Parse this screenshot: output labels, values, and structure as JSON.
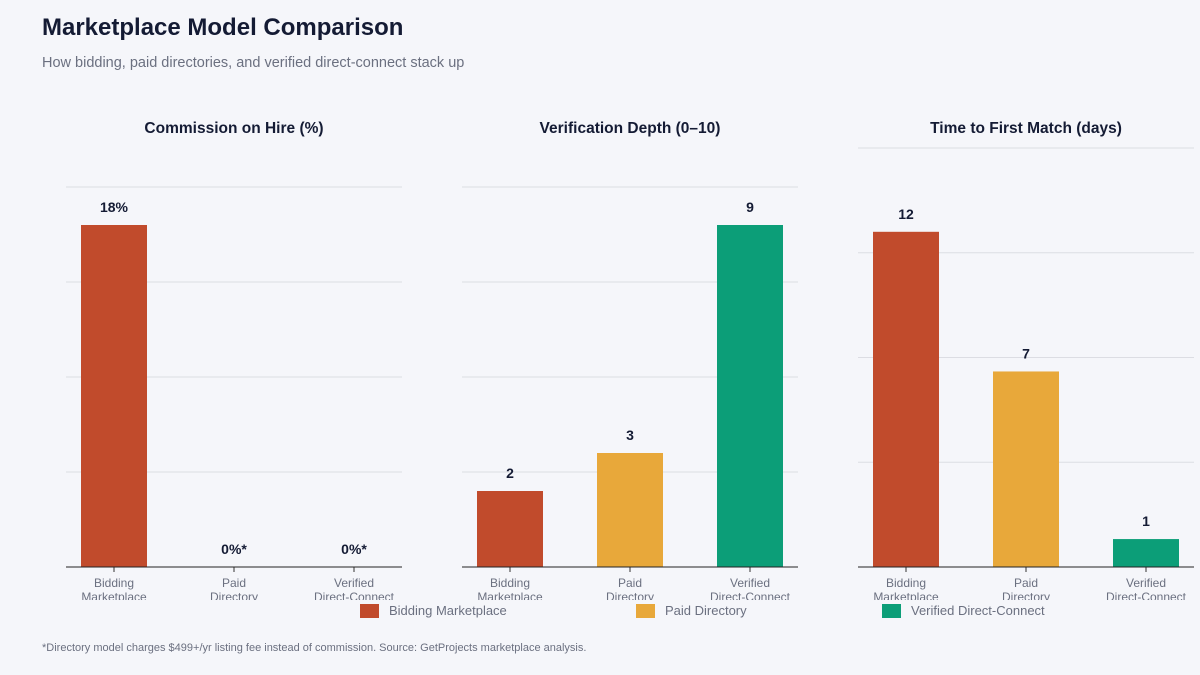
{
  "header": {
    "title": "Marketplace Model Comparison",
    "subtitle": "How bidding, paid directories, and verified direct-connect stack up"
  },
  "colors": {
    "Bidding Marketplace": "#c14b2c",
    "Paid Directory": "#e8a83a",
    "Verified Direct-Connect": "#0c9e78"
  },
  "chart_data": [
    {
      "type": "bar",
      "title": "Commission on Hire (%)",
      "categories": [
        "Bidding\nMarketplace",
        "Paid\nDirectory",
        "Verified\nDirect-Connect"
      ],
      "series_names": [
        "Bidding Marketplace",
        "Paid Directory",
        "Verified Direct-Connect"
      ],
      "values": [
        18,
        0,
        0
      ],
      "labels": [
        "18%",
        "0%*",
        "0%*"
      ],
      "ylim": [
        0,
        20
      ],
      "grid": true
    },
    {
      "type": "bar",
      "title": "Verification Depth (0–10)",
      "categories": [
        "Bidding\nMarketplace",
        "Paid\nDirectory",
        "Verified\nDirect-Connect"
      ],
      "series_names": [
        "Bidding Marketplace",
        "Paid Directory",
        "Verified Direct-Connect"
      ],
      "values": [
        2,
        3,
        9
      ],
      "labels": [
        "2",
        "3",
        "9"
      ],
      "ylim": [
        0,
        10
      ],
      "grid": true
    },
    {
      "type": "bar",
      "title": "Time to First Match (days)",
      "categories": [
        "Bidding\nMarketplace",
        "Paid\nDirectory",
        "Verified\nDirect-Connect"
      ],
      "series_names": [
        "Bidding Marketplace",
        "Paid Directory",
        "Verified Direct-Connect"
      ],
      "values": [
        12,
        7,
        1
      ],
      "labels": [
        "12",
        "7",
        "1"
      ],
      "ylim": [
        0,
        15
      ],
      "grid": true
    }
  ],
  "legend": {
    "placement": "bottom",
    "items": [
      {
        "label": "Bidding Marketplace",
        "color": "#c14b2c"
      },
      {
        "label": "Paid Directory",
        "color": "#e8a83a"
      },
      {
        "label": "Verified Direct-Connect",
        "color": "#0c9e78"
      }
    ]
  },
  "footnote": "*Directory model charges $499+/yr listing fee instead of commission.  Source: GetProjects marketplace analysis."
}
